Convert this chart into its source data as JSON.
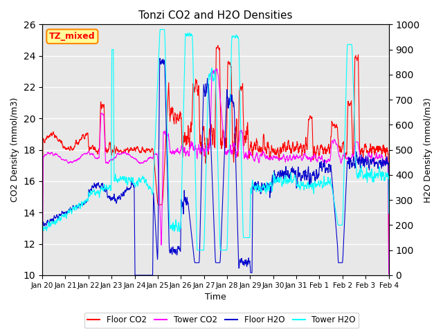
{
  "title": "Tonzi CO2 and H2O Densities",
  "xlabel": "Time",
  "ylabel_left": "CO2 Density (mmol/m3)",
  "ylabel_right": "H2O Density (mmol/m3)",
  "annotation": "TZ_mixed",
  "ylim_left": [
    10,
    26
  ],
  "ylim_right": [
    0,
    1000
  ],
  "yticks_left": [
    10,
    12,
    14,
    16,
    18,
    20,
    22,
    24,
    26
  ],
  "yticks_right": [
    0,
    100,
    200,
    300,
    400,
    500,
    600,
    700,
    800,
    900,
    1000
  ],
  "xtick_labels": [
    "Jan 20",
    "Jan 21",
    "Jan 22",
    "Jan 23",
    "Jan 24",
    "Jan 25",
    "Jan 26",
    "Jan 27",
    "Jan 28",
    "Jan 29",
    "Jan 30",
    "Jan 31",
    "Feb 1",
    "Feb 2",
    "Feb 3",
    "Feb 4"
  ],
  "colors": {
    "floor_co2": "#FF0000",
    "tower_co2": "#FF00FF",
    "floor_h2o": "#0000CD",
    "tower_h2o": "#00FFFF"
  },
  "legend_labels": [
    "Floor CO2",
    "Tower CO2",
    "Floor H2O",
    "Tower H2O"
  ],
  "background_color": "#E8E8E8",
  "annotation_bg": "#FFFF99",
  "annotation_border": "#FF8800"
}
